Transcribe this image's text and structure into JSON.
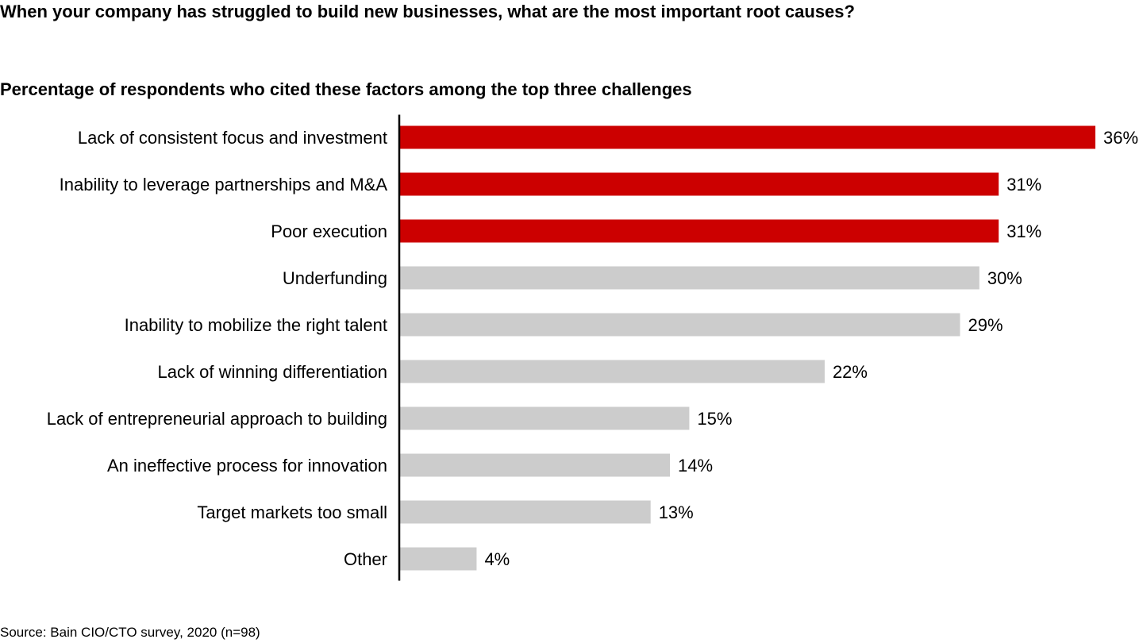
{
  "title": "When your company has struggled to build new businesses, what are the most important root causes?",
  "subtitle": "Percentage of respondents who cited these factors among the top three challenges",
  "source": "Source: Bain CIO/CTO survey, 2020 (n=98)",
  "colors": {
    "highlight": "#cc0000",
    "base": "#cccccc",
    "axis": "#000000"
  },
  "chart_data": {
    "type": "bar",
    "orientation": "horizontal",
    "categories": [
      "Lack of consistent focus and investment",
      "Inability to leverage partnerships and M&A",
      "Poor execution",
      "Underfunding",
      "Inability to mobilize the right talent",
      "Lack of winning differentiation",
      "Lack of entrepreneurial approach to building",
      "An ineffective process for innovation",
      "Target markets too small",
      "Other"
    ],
    "values": [
      36,
      31,
      31,
      30,
      29,
      22,
      15,
      14,
      13,
      4
    ],
    "labels": [
      "36%",
      "31%",
      "31%",
      "30%",
      "29%",
      "22%",
      "15%",
      "14%",
      "13%",
      "4%"
    ],
    "highlighted": [
      true,
      true,
      true,
      false,
      false,
      false,
      false,
      false,
      false,
      false
    ],
    "unit": "%",
    "grid": false,
    "legend": "none"
  }
}
